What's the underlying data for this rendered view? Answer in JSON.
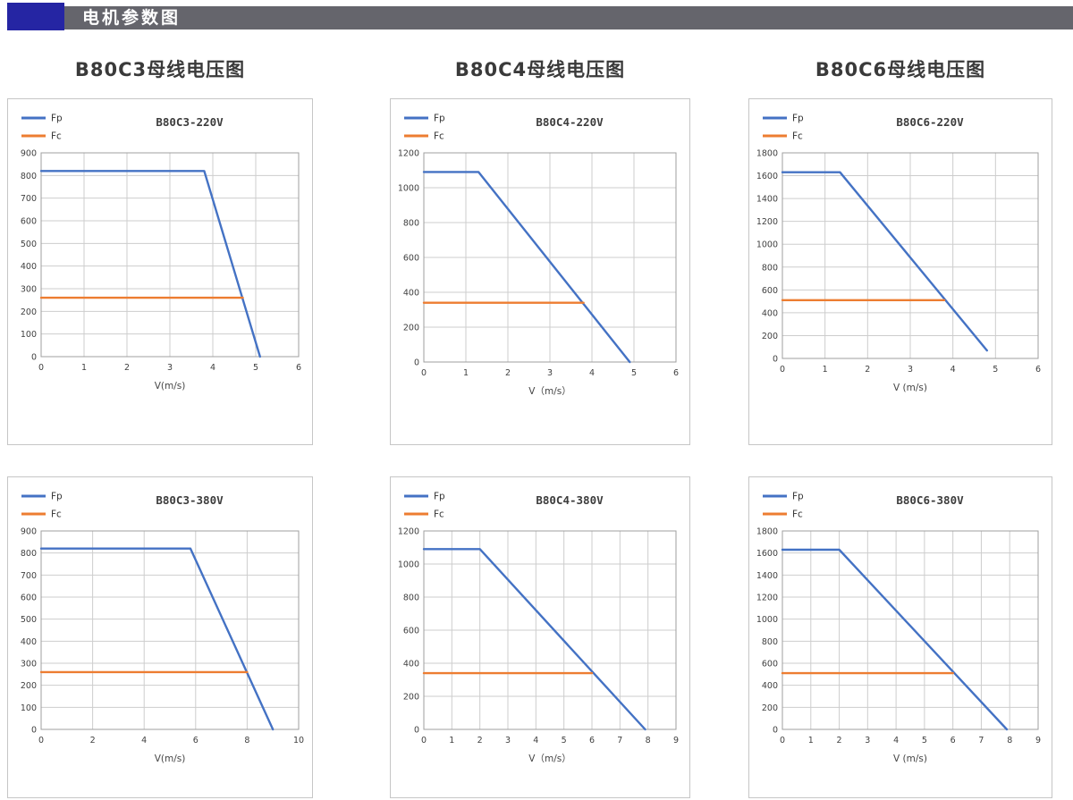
{
  "header": {
    "title": "电机参数图"
  },
  "colors": {
    "accent_blue": "#2525A3",
    "banner_gray": "#65656C",
    "fp_line": "#4472C4",
    "fc_line": "#ED7D31",
    "grid": "#CDCDCD"
  },
  "columns": [
    {
      "title": "B80C3母线电压图"
    },
    {
      "title": "B80C4母线电压图"
    },
    {
      "title": "B80C6母线电压图"
    }
  ],
  "legend": {
    "fp_label": "Fp",
    "fc_label": "Fc"
  },
  "chart_data": [
    {
      "type": "line",
      "title": "B80C3-220V",
      "xlabel": "V(m/s)",
      "xlim": [
        0,
        6
      ],
      "xticks": [
        0,
        1,
        2,
        3,
        4,
        5,
        6
      ],
      "ylim": [
        0,
        900
      ],
      "yticks": [
        0,
        100,
        200,
        300,
        400,
        500,
        600,
        700,
        800,
        900
      ],
      "grid": true,
      "legend_position": "top-left",
      "series": [
        {
          "name": "Fp",
          "color": "#4472C4",
          "points": [
            [
              0,
              820
            ],
            [
              3.8,
              820
            ],
            [
              5.1,
              0
            ]
          ]
        },
        {
          "name": "Fc",
          "color": "#ED7D31",
          "points": [
            [
              0,
              260
            ],
            [
              4.7,
              260
            ]
          ]
        }
      ]
    },
    {
      "type": "line",
      "title": "B80C4-220V",
      "xlabel": "V（m/s）",
      "xlim": [
        0,
        6
      ],
      "xticks": [
        0,
        1,
        2,
        3,
        4,
        5,
        6
      ],
      "ylim": [
        0,
        1200
      ],
      "yticks": [
        0,
        200,
        400,
        600,
        800,
        1000,
        1200
      ],
      "grid": true,
      "legend_position": "top-left",
      "series": [
        {
          "name": "Fp",
          "color": "#4472C4",
          "points": [
            [
              0,
              1090
            ],
            [
              1.3,
              1090
            ],
            [
              4.9,
              0
            ]
          ]
        },
        {
          "name": "Fc",
          "color": "#ED7D31",
          "points": [
            [
              0,
              340
            ],
            [
              3.8,
              340
            ]
          ]
        }
      ]
    },
    {
      "type": "line",
      "title": "B80C6-220V",
      "xlabel": "V (m/s)",
      "xlim": [
        0,
        6
      ],
      "xticks": [
        0,
        1,
        2,
        3,
        4,
        5,
        6
      ],
      "ylim": [
        0,
        1800
      ],
      "yticks": [
        0,
        200,
        400,
        600,
        800,
        1000,
        1200,
        1400,
        1600,
        1800
      ],
      "grid": true,
      "legend_position": "top-left",
      "series": [
        {
          "name": "Fp",
          "color": "#4472C4",
          "points": [
            [
              0,
              1630
            ],
            [
              1.35,
              1630
            ],
            [
              4.8,
              70
            ]
          ]
        },
        {
          "name": "Fc",
          "color": "#ED7D31",
          "points": [
            [
              0,
              510
            ],
            [
              3.8,
              510
            ]
          ]
        }
      ]
    },
    {
      "type": "line",
      "title": "B80C3-380V",
      "xlabel": "V(m/s)",
      "xlim": [
        0,
        10
      ],
      "xticks": [
        0,
        2,
        4,
        6,
        8,
        10
      ],
      "ylim": [
        0,
        900
      ],
      "yticks": [
        0,
        100,
        200,
        300,
        400,
        500,
        600,
        700,
        800,
        900
      ],
      "grid": true,
      "legend_position": "top-left",
      "series": [
        {
          "name": "Fp",
          "color": "#4472C4",
          "points": [
            [
              0,
              820
            ],
            [
              5.8,
              820
            ],
            [
              9.0,
              0
            ]
          ]
        },
        {
          "name": "Fc",
          "color": "#ED7D31",
          "points": [
            [
              0,
              260
            ],
            [
              8.0,
              260
            ]
          ]
        }
      ]
    },
    {
      "type": "line",
      "title": "B80C4-380V",
      "xlabel": "V（m/s）",
      "xlim": [
        0,
        9
      ],
      "xticks": [
        0,
        1,
        2,
        3,
        4,
        5,
        6,
        7,
        8,
        9
      ],
      "ylim": [
        0,
        1200
      ],
      "yticks": [
        0,
        200,
        400,
        600,
        800,
        1000,
        1200
      ],
      "grid": true,
      "legend_position": "top-left",
      "series": [
        {
          "name": "Fp",
          "color": "#4472C4",
          "points": [
            [
              0,
              1090
            ],
            [
              2.0,
              1090
            ],
            [
              7.9,
              0
            ]
          ]
        },
        {
          "name": "Fc",
          "color": "#ED7D31",
          "points": [
            [
              0,
              340
            ],
            [
              6.0,
              340
            ]
          ]
        }
      ]
    },
    {
      "type": "line",
      "title": "B80C6-380V",
      "xlabel": "V (m/s)",
      "xlim": [
        0,
        9
      ],
      "xticks": [
        0,
        1,
        2,
        3,
        4,
        5,
        6,
        7,
        8,
        9
      ],
      "ylim": [
        0,
        1800
      ],
      "yticks": [
        0,
        200,
        400,
        600,
        800,
        1000,
        1200,
        1400,
        1600,
        1800
      ],
      "grid": true,
      "legend_position": "top-left",
      "series": [
        {
          "name": "Fp",
          "color": "#4472C4",
          "points": [
            [
              0,
              1630
            ],
            [
              2.0,
              1630
            ],
            [
              7.9,
              0
            ]
          ]
        },
        {
          "name": "Fc",
          "color": "#ED7D31",
          "points": [
            [
              0,
              510
            ],
            [
              6.0,
              510
            ]
          ]
        }
      ]
    }
  ]
}
